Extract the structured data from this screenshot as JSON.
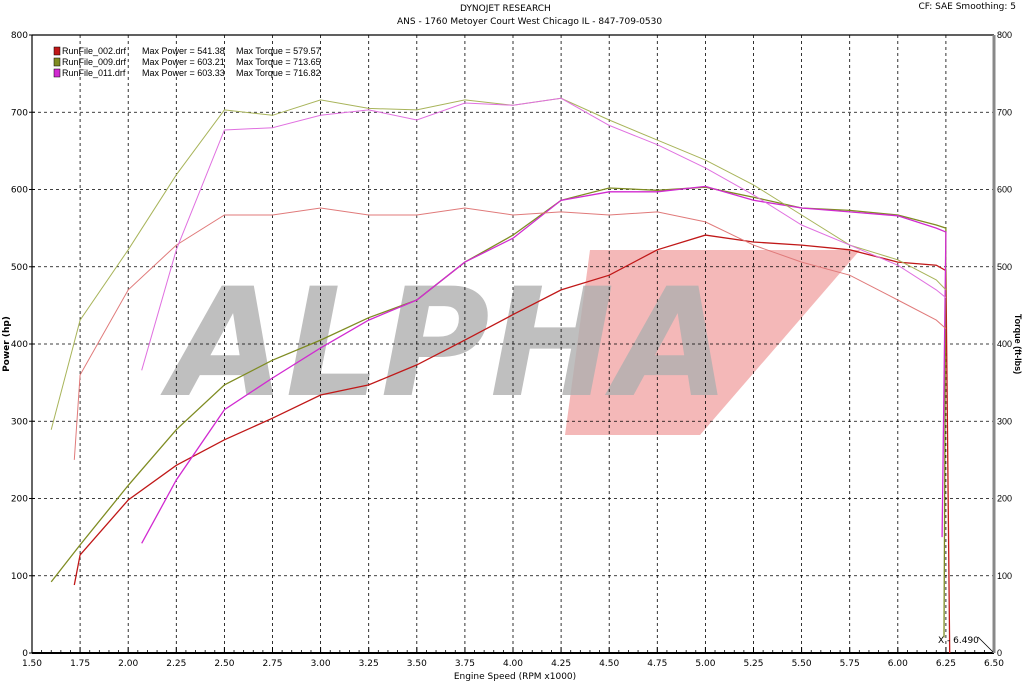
{
  "header": {
    "title": "DYNOJET RESEARCH",
    "subtitle": "ANS - 1760 Metoyer Court  West Chicago IL - 847-709-0530",
    "settings": "CF: SAE  Smoothing: 5"
  },
  "watermark": "ALPHA",
  "cursor_readout": "X - 6.490",
  "colors": {
    "run002": "#c01818",
    "run009": "#7f8c22",
    "run011": "#d12ad1",
    "grid": "#000000"
  },
  "chart_data": {
    "type": "line",
    "xlabel": "Engine Speed (RPM x1000)",
    "ylabel": "Power (hp)",
    "y2label": "Torque (ft-lbs)",
    "xlim": [
      1.5,
      6.5
    ],
    "ylim": [
      0,
      800
    ],
    "y2lim": [
      0,
      800
    ],
    "xticks": [
      "1.50",
      "1.75",
      "2.00",
      "2.25",
      "2.50",
      "2.75",
      "3.00",
      "3.25",
      "3.50",
      "3.75",
      "4.00",
      "4.25",
      "4.50",
      "4.75",
      "5.00",
      "5.25",
      "5.50",
      "5.75",
      "6.00",
      "6.25",
      "6.50"
    ],
    "yticks": [
      "0",
      "100",
      "200",
      "300",
      "400",
      "500",
      "600",
      "700",
      "800"
    ],
    "grid": true,
    "legend_position": "top-left",
    "legend": [
      {
        "file": "RunFile_002.drf",
        "max_power": "Max Power = 541.38",
        "max_torque": "Max Torque = 579.57",
        "color": "#c01818"
      },
      {
        "file": "RunFile_009.drf",
        "max_power": "Max Power = 603.21",
        "max_torque": "Max Torque = 713.65",
        "color": "#7f8c22"
      },
      {
        "file": "RunFile_011.drf",
        "max_power": "Max Power = 603.33",
        "max_torque": "Max Torque = 716.82",
        "color": "#d12ad1"
      }
    ],
    "series": [
      {
        "name": "RunFile_002.drf",
        "measure": "power",
        "color": "#c01818",
        "x": [
          1.72,
          1.75,
          2.0,
          2.25,
          2.5,
          2.75,
          3.0,
          3.25,
          3.5,
          3.75,
          4.0,
          4.25,
          4.5,
          4.75,
          5.0,
          5.25,
          5.5,
          5.75,
          6.0,
          6.2,
          6.25,
          6.27
        ],
        "y": [
          88,
          127,
          198,
          243,
          276,
          304,
          334,
          347,
          373,
          405,
          438,
          470,
          489,
          522,
          541,
          532,
          528,
          522,
          506,
          502,
          495,
          0
        ]
      },
      {
        "name": "RunFile_009.drf",
        "measure": "power",
        "color": "#7f8c22",
        "x": [
          1.6,
          1.75,
          2.0,
          2.25,
          2.5,
          2.75,
          3.0,
          3.25,
          3.5,
          3.75,
          4.0,
          4.25,
          4.5,
          4.75,
          5.0,
          5.25,
          5.5,
          5.75,
          6.0,
          6.2,
          6.25,
          6.24
        ],
        "y": [
          92,
          140,
          217,
          289,
          347,
          379,
          405,
          434,
          457,
          506,
          541,
          586,
          602,
          599,
          603,
          590,
          576,
          573,
          567,
          554,
          550,
          20
        ]
      },
      {
        "name": "RunFile_011.drf",
        "measure": "power",
        "color": "#d12ad1",
        "x": [
          2.07,
          2.25,
          2.5,
          2.75,
          3.0,
          3.25,
          3.5,
          3.75,
          4.0,
          4.25,
          4.5,
          4.75,
          5.0,
          5.25,
          5.5,
          5.75,
          6.0,
          6.2,
          6.25,
          6.23
        ],
        "y": [
          142,
          224,
          315,
          356,
          395,
          431,
          457,
          506,
          537,
          586,
          597,
          597,
          604,
          586,
          576,
          571,
          566,
          550,
          545,
          150
        ]
      },
      {
        "name": "RunFile_002.drf",
        "measure": "torque",
        "color": "#e07a7a",
        "x": [
          1.72,
          1.75,
          2.0,
          2.25,
          2.5,
          2.75,
          3.0,
          3.25,
          3.5,
          3.75,
          4.0,
          4.25,
          4.5,
          4.75,
          5.0,
          5.25,
          5.5,
          5.75,
          6.0,
          6.2,
          6.25
        ],
        "y": [
          250,
          360,
          470,
          528,
          567,
          567,
          576,
          567,
          567,
          576,
          567,
          571,
          567,
          571,
          558,
          528,
          506,
          489,
          457,
          431,
          420
        ]
      },
      {
        "name": "RunFile_009.drf",
        "measure": "torque",
        "color": "#a8b45a",
        "x": [
          1.6,
          1.75,
          2.0,
          2.25,
          2.5,
          2.75,
          3.0,
          3.25,
          3.5,
          3.75,
          4.0,
          4.25,
          4.5,
          4.75,
          5.0,
          5.25,
          5.5,
          5.75,
          6.0,
          6.2,
          6.25
        ],
        "y": [
          289,
          431,
          522,
          619,
          703,
          696,
          716,
          705,
          703,
          716,
          709,
          718,
          690,
          664,
          638,
          606,
          567,
          528,
          509,
          483,
          470
        ]
      },
      {
        "name": "RunFile_011.drf",
        "measure": "torque",
        "color": "#e070e0",
        "x": [
          2.07,
          2.25,
          2.5,
          2.75,
          3.0,
          3.25,
          3.5,
          3.75,
          4.0,
          4.25,
          4.5,
          4.75,
          5.0,
          5.25,
          5.5,
          5.75,
          6.0,
          6.2,
          6.25
        ],
        "y": [
          366,
          522,
          677,
          680,
          696,
          703,
          690,
          712,
          709,
          718,
          683,
          658,
          628,
          593,
          554,
          528,
          502,
          470,
          460
        ]
      }
    ]
  }
}
